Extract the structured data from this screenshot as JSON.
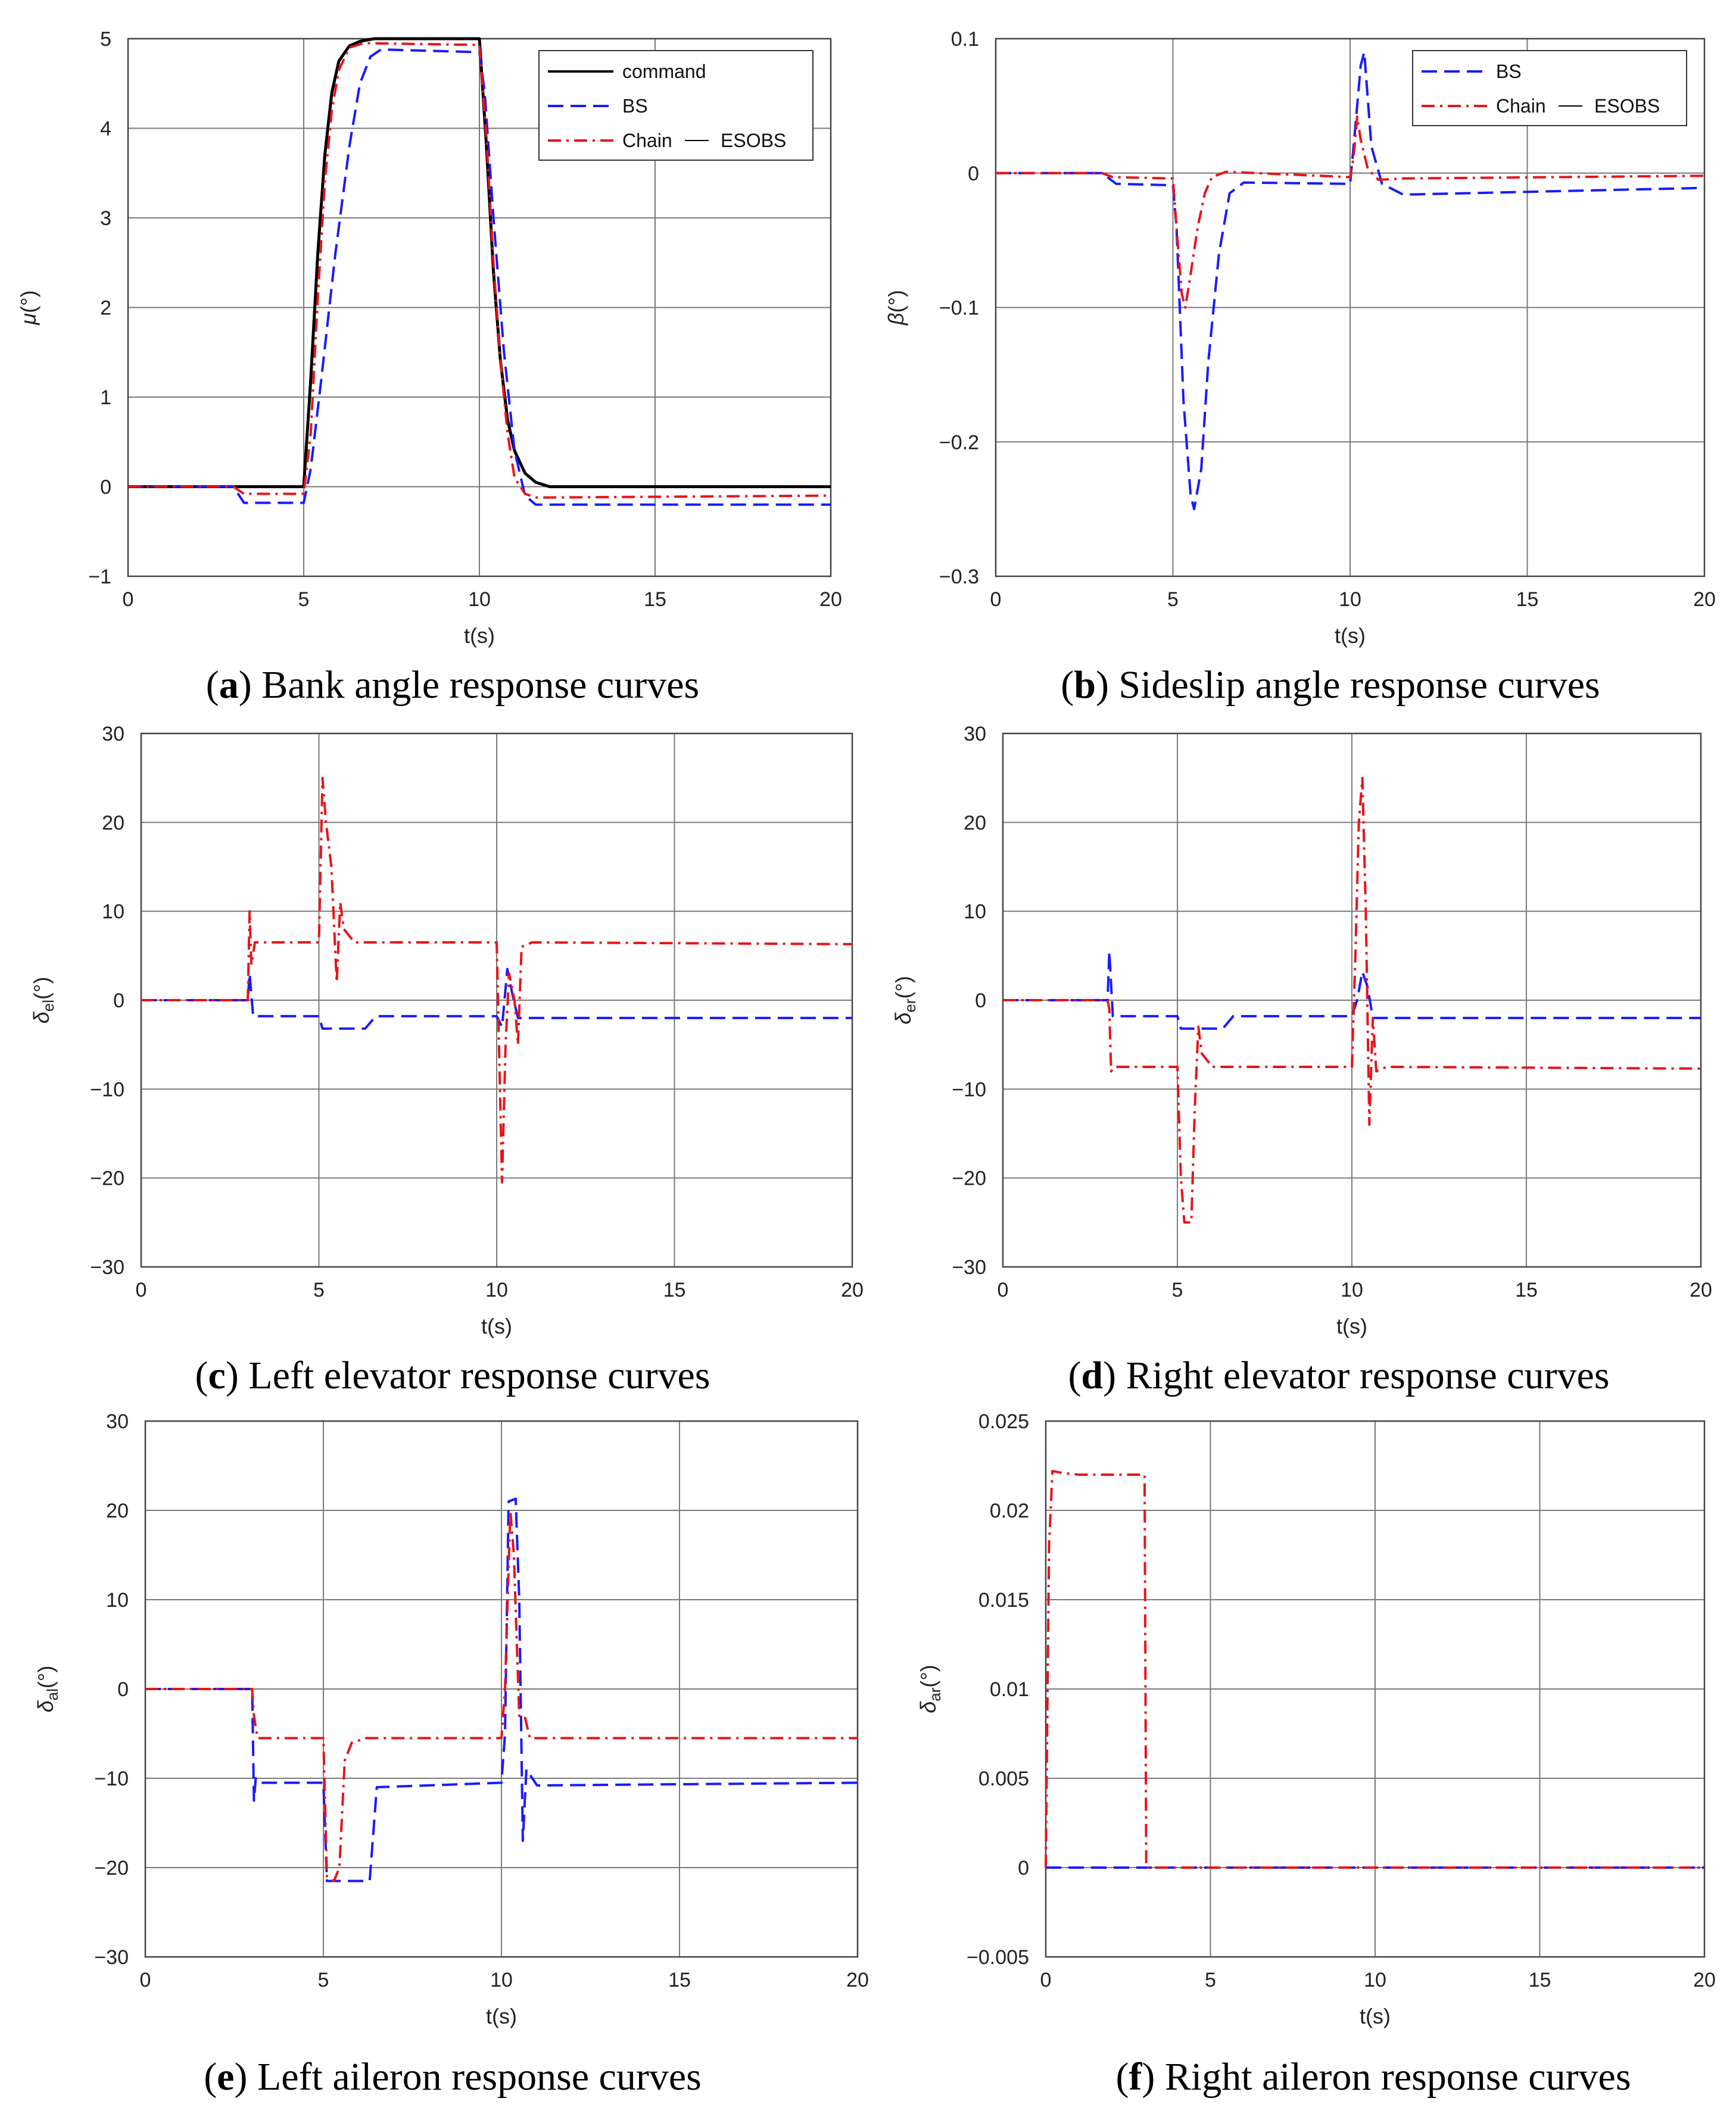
{
  "colors": {
    "command": "#000000",
    "BS": "#1a1aff",
    "Chain": "#e8141a",
    "ESOBS": "#000000",
    "grid": "#7a7a7a"
  },
  "chart_data": [
    {
      "id": "a",
      "type": "line",
      "caption": {
        "label": "a",
        "text": " Bank angle response curves"
      },
      "xlabel": "t(s)",
      "ylabel": "μ(°)",
      "xlim": [
        0,
        20
      ],
      "ylim": [
        -1,
        5
      ],
      "xticks": [
        0,
        5,
        10,
        15,
        20
      ],
      "yticks": [
        -1,
        0,
        1,
        2,
        3,
        4,
        5
      ],
      "xticklabels": [
        "0",
        "5",
        "10",
        "15",
        "20"
      ],
      "yticklabels": [
        "−1",
        "0",
        "1",
        "2",
        "3",
        "4",
        "5"
      ],
      "grid": true,
      "legend_position": "top-right",
      "legend": [
        [
          "command"
        ],
        [
          "BS"
        ],
        [
          "Chain",
          "ESOBS"
        ]
      ],
      "series": [
        {
          "name": "command",
          "style": "solid",
          "x": [
            0,
            5,
            5.2,
            5.4,
            5.6,
            5.8,
            6,
            6.3,
            6.6,
            7,
            10,
            10.2,
            10.4,
            10.6,
            10.8,
            11,
            11.3,
            11.6,
            12,
            20
          ],
          "y": [
            0,
            0,
            1.2,
            2.6,
            3.7,
            4.4,
            4.75,
            4.92,
            4.97,
            5,
            5,
            3.8,
            2.4,
            1.4,
            0.75,
            0.4,
            0.15,
            0.05,
            0,
            0
          ]
        },
        {
          "name": "BS",
          "style": "dashed",
          "x": [
            0,
            3,
            3.3,
            5,
            5.2,
            5.5,
            5.9,
            6.3,
            6.6,
            6.9,
            7.2,
            10,
            10.15,
            10.4,
            10.7,
            11,
            11.3,
            11.6,
            12,
            20
          ],
          "y": [
            0,
            0,
            -0.18,
            -0.18,
            0.2,
            1.2,
            2.6,
            3.8,
            4.5,
            4.8,
            4.88,
            4.85,
            4.4,
            3,
            1.5,
            0.4,
            -0.1,
            -0.2,
            -0.2,
            -0.2
          ]
        },
        {
          "name": "Chain",
          "style": "dashdot",
          "x": [
            0,
            3,
            3.3,
            5,
            5.2,
            5.4,
            5.6,
            5.8,
            6,
            6.3,
            6.7,
            10,
            10.2,
            10.4,
            10.6,
            10.8,
            11,
            11.3,
            11.6,
            12,
            20
          ],
          "y": [
            0,
            0,
            -0.08,
            -0.08,
            0.6,
            2.1,
            3.4,
            4.2,
            4.65,
            4.9,
            4.95,
            4.93,
            3.9,
            2.5,
            1.4,
            0.6,
            0.1,
            -0.08,
            -0.12,
            -0.12,
            -0.1
          ]
        }
      ]
    },
    {
      "id": "b",
      "type": "line",
      "caption": {
        "label": "b",
        "text": " Sideslip angle response curves"
      },
      "xlabel": "t(s)",
      "ylabel": "β(°)",
      "xlim": [
        0,
        20
      ],
      "ylim": [
        -0.3,
        0.1
      ],
      "xticks": [
        0,
        5,
        10,
        15,
        20
      ],
      "yticks": [
        -0.3,
        -0.2,
        -0.1,
        0,
        0.1
      ],
      "xticklabels": [
        "0",
        "5",
        "10",
        "15",
        "20"
      ],
      "yticklabels": [
        "−0.3",
        "−0.2",
        "−0.1",
        "0",
        "0.1"
      ],
      "grid": true,
      "legend_position": "top-right",
      "legend": [
        [
          "BS"
        ],
        [
          "Chain",
          "ESOBS"
        ]
      ],
      "series": [
        {
          "name": "BS",
          "style": "dashed",
          "x": [
            0,
            3,
            3.4,
            5,
            5.1,
            5.3,
            5.5,
            5.6,
            5.8,
            6,
            6.3,
            6.6,
            7,
            10,
            10.1,
            10.3,
            10.4,
            10.6,
            10.9,
            11.5,
            20
          ],
          "y": [
            0,
            0,
            -0.008,
            -0.009,
            -0.04,
            -0.17,
            -0.24,
            -0.25,
            -0.22,
            -0.14,
            -0.06,
            -0.015,
            -0.007,
            -0.008,
            0.02,
            0.08,
            0.09,
            0.02,
            -0.008,
            -0.016,
            -0.011
          ]
        },
        {
          "name": "Chain",
          "style": "dashdot",
          "x": [
            0,
            3,
            3.3,
            5,
            5.1,
            5.25,
            5.35,
            5.5,
            5.7,
            5.9,
            6.1,
            6.5,
            10,
            10.1,
            10.2,
            10.3,
            10.5,
            10.8,
            11.5,
            20
          ],
          "y": [
            0,
            0,
            -0.003,
            -0.004,
            -0.04,
            -0.09,
            -0.1,
            -0.075,
            -0.04,
            -0.015,
            -0.003,
            0.001,
            -0.003,
            0.012,
            0.042,
            0.025,
            0.003,
            -0.005,
            -0.004,
            -0.002
          ]
        }
      ]
    },
    {
      "id": "c",
      "type": "line",
      "caption": {
        "label": "c",
        "text": " Left elevator response curves"
      },
      "xlabel": "t(s)",
      "ylabel": "δel(°)",
      "xlim": [
        0,
        20
      ],
      "ylim": [
        -30,
        30
      ],
      "xticks": [
        0,
        5,
        10,
        15,
        20
      ],
      "yticks": [
        -30,
        -20,
        -10,
        0,
        10,
        20,
        30
      ],
      "xticklabels": [
        "0",
        "5",
        "10",
        "15",
        "20"
      ],
      "yticklabels": [
        "−30",
        "−20",
        "−10",
        "0",
        "10",
        "20",
        "30"
      ],
      "grid": true,
      "series": [
        {
          "name": "BS",
          "style": "dashed",
          "x": [
            0,
            3,
            3.05,
            3.15,
            5,
            5.1,
            6.3,
            6.6,
            10,
            10.15,
            10.3,
            10.45,
            10.6,
            11,
            20
          ],
          "y": [
            0,
            0,
            3,
            -1.8,
            -1.8,
            -3.2,
            -3.2,
            -1.8,
            -1.8,
            -3,
            3.5,
            0.5,
            -2,
            -2,
            -2
          ]
        },
        {
          "name": "Chain",
          "style": "dashdot",
          "x": [
            0,
            3,
            3.05,
            3.1,
            3.2,
            5,
            5.1,
            5.2,
            5.35,
            5.5,
            5.6,
            5.7,
            6,
            10,
            10.15,
            10.25,
            10.35,
            10.5,
            10.6,
            10.7,
            11,
            20
          ],
          "y": [
            0,
            0,
            10,
            4,
            6.5,
            6.5,
            25,
            20,
            15,
            2,
            11,
            8,
            6.5,
            6.5,
            -20.5,
            -5,
            3,
            0,
            -5,
            6,
            6.5,
            6.3
          ]
        }
      ]
    },
    {
      "id": "d",
      "type": "line",
      "caption": {
        "label": "d",
        "text": " Right elevator response curves"
      },
      "xlabel": "t(s)",
      "ylabel": "δer(°)",
      "xlim": [
        0,
        20
      ],
      "ylim": [
        -30,
        30
      ],
      "xticks": [
        0,
        5,
        10,
        15,
        20
      ],
      "yticks": [
        -30,
        -20,
        -10,
        0,
        10,
        20,
        30
      ],
      "xticklabels": [
        "0",
        "5",
        "10",
        "15",
        "20"
      ],
      "yticklabels": [
        "−30",
        "−20",
        "−10",
        "0",
        "10",
        "20",
        "30"
      ],
      "grid": true,
      "series": [
        {
          "name": "BS",
          "style": "dashed",
          "x": [
            0,
            3,
            3.05,
            3.15,
            5,
            5.1,
            6.3,
            6.6,
            10,
            10.15,
            10.3,
            10.45,
            10.6,
            11,
            20
          ],
          "y": [
            0,
            0,
            5.5,
            -1.8,
            -1.8,
            -3.2,
            -3.2,
            -1.8,
            -1.8,
            0,
            3.2,
            1.5,
            -2,
            -2,
            -2
          ]
        },
        {
          "name": "Chain",
          "style": "dashdot",
          "x": [
            0,
            3,
            3.05,
            3.1,
            3.2,
            5,
            5.1,
            5.2,
            5.4,
            5.5,
            5.6,
            5.7,
            6,
            10,
            10.1,
            10.2,
            10.3,
            10.4,
            10.5,
            10.6,
            10.7,
            11,
            20
          ],
          "y": [
            0,
            0,
            -1,
            -8,
            -7.5,
            -7.5,
            -20,
            -25,
            -25,
            -12,
            -3,
            -6,
            -7.5,
            -7.5,
            5,
            20,
            25,
            10,
            -14,
            -2,
            -8,
            -7.5,
            -7.7
          ]
        }
      ]
    },
    {
      "id": "e",
      "type": "line",
      "caption": {
        "label": "e",
        "text": " Left aileron response curves"
      },
      "xlabel": "t(s)",
      "ylabel": "δal(°)",
      "xlim": [
        0,
        20
      ],
      "ylim": [
        -30,
        30
      ],
      "xticks": [
        0,
        5,
        10,
        15,
        20
      ],
      "yticks": [
        -30,
        -20,
        -10,
        0,
        10,
        20,
        30
      ],
      "xticklabels": [
        "0",
        "5",
        "10",
        "15",
        "20"
      ],
      "yticklabels": [
        "−30",
        "−20",
        "−10",
        "0",
        "10",
        "20",
        "30"
      ],
      "grid": true,
      "series": [
        {
          "name": "BS",
          "style": "dashed",
          "x": [
            0,
            3,
            3.05,
            3.1,
            3.2,
            5,
            5.1,
            6.3,
            6.5,
            10,
            10.1,
            10.2,
            10.4,
            10.5,
            10.6,
            10.7,
            11,
            20
          ],
          "y": [
            0,
            0,
            -12.5,
            -10,
            -10.5,
            -10.5,
            -21.5,
            -21.5,
            -11,
            -10.5,
            -5,
            21,
            21.3,
            10,
            -17,
            -9,
            -10.8,
            -10.5
          ]
        },
        {
          "name": "Chain",
          "style": "dashdot",
          "x": [
            0,
            3,
            3.05,
            3.15,
            5,
            5.1,
            5.3,
            5.45,
            5.6,
            5.8,
            6.2,
            10,
            10.1,
            10.25,
            10.35,
            10.5,
            10.65,
            10.8,
            11,
            20
          ],
          "y": [
            0,
            0,
            -3,
            -5.5,
            -5.5,
            -21,
            -21.5,
            -20,
            -8,
            -6,
            -5.5,
            -5.5,
            0,
            20,
            15,
            -3,
            -3,
            -5.5,
            -5.5,
            -5.5
          ]
        }
      ]
    },
    {
      "id": "f",
      "type": "line",
      "caption": {
        "label": "f",
        "text": " Right aileron response curves"
      },
      "xlabel": "t(s)",
      "ylabel": "δar(°)",
      "xlim": [
        0,
        20
      ],
      "ylim": [
        -0.005,
        0.025
      ],
      "xticks": [
        0,
        5,
        10,
        15,
        20
      ],
      "yticks": [
        -0.005,
        0,
        0.005,
        0.01,
        0.015,
        0.02,
        0.025
      ],
      "xticklabels": [
        "0",
        "5",
        "10",
        "15",
        "20"
      ],
      "yticklabels": [
        "−0.005",
        "0",
        "0.005",
        "0.01",
        "0.015",
        "0.02",
        "0.025"
      ],
      "grid": true,
      "series": [
        {
          "name": "BS",
          "style": "dashed",
          "x": [
            0,
            20
          ],
          "y": [
            0,
            0
          ]
        },
        {
          "name": "Chain",
          "style": "dashdot",
          "x": [
            0,
            0.1,
            0.2,
            0.5,
            1,
            2,
            3,
            3.05,
            20
          ],
          "y": [
            0,
            0.018,
            0.0222,
            0.0221,
            0.022,
            0.022,
            0.022,
            0,
            0
          ]
        }
      ]
    }
  ]
}
